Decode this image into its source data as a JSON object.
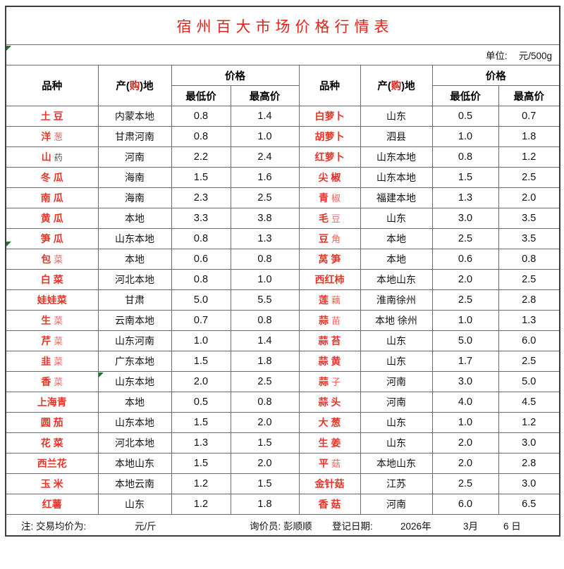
{
  "title": "宿州百大市场价格行情表",
  "unit": {
    "label": "单位:",
    "value": "元/500g"
  },
  "header": {
    "variety": "品种",
    "origin_pre": "产(",
    "origin_buy": "购",
    "origin_post": ")地",
    "price": "价格",
    "min": "最低价",
    "max": "最高价"
  },
  "colors": {
    "title_red": "#e0241b",
    "variety_red": "#e8352a",
    "variety_light_red": "#ee6a5e",
    "error_indicator_green": "#1e7a1e",
    "border_gray": "#6a6a6a"
  },
  "rows": [
    {
      "left": {
        "name": [
          [
            "土 豆",
            "r"
          ]
        ],
        "origin": "内蒙本地",
        "low": "0.8",
        "high": "1.4"
      },
      "right": {
        "name": [
          [
            "白萝卜",
            "r"
          ]
        ],
        "origin": "山东",
        "low": "0.5",
        "high": "0.7"
      }
    },
    {
      "left": {
        "name": [
          [
            "洋 ",
            "r"
          ],
          [
            "葱",
            "l"
          ]
        ],
        "origin": "甘肃河南",
        "low": "0.8",
        "high": "1.0"
      },
      "right": {
        "name": [
          [
            "胡萝卜",
            "r"
          ]
        ],
        "origin": "泗县",
        "low": "1.0",
        "high": "1.8"
      }
    },
    {
      "left": {
        "name": [
          [
            "山 ",
            "r"
          ],
          [
            "药",
            "k"
          ]
        ],
        "origin": "河南",
        "low": "2.2",
        "high": "2.4"
      },
      "right": {
        "name": [
          [
            "红萝卜",
            "r"
          ]
        ],
        "origin": "山东本地",
        "low": "0.8",
        "high": "1.2"
      }
    },
    {
      "left": {
        "name": [
          [
            "冬 瓜",
            "r"
          ]
        ],
        "origin": "海南",
        "low": "1.5",
        "high": "1.6"
      },
      "right": {
        "name": [
          [
            "尖 椒",
            "r"
          ]
        ],
        "origin": "山东本地",
        "low": "1.5",
        "high": "2.5"
      }
    },
    {
      "left": {
        "name": [
          [
            "南 瓜",
            "r"
          ]
        ],
        "origin": "海南",
        "low": "2.3",
        "high": "2.5"
      },
      "right": {
        "name": [
          [
            "青 ",
            "r"
          ],
          [
            "椒",
            "l"
          ]
        ],
        "origin": "福建本地",
        "low": "1.3",
        "high": "2.0"
      }
    },
    {
      "left": {
        "name": [
          [
            "黄 瓜",
            "r"
          ]
        ],
        "origin": "本地",
        "low": "3.3",
        "high": "3.8"
      },
      "right": {
        "name": [
          [
            "毛 ",
            "r"
          ],
          [
            "豆",
            "l"
          ]
        ],
        "origin": "山东",
        "low": "3.0",
        "high": "3.5"
      }
    },
    {
      "left": {
        "name": [
          [
            "笋 瓜",
            "r"
          ]
        ],
        "origin": "山东本地",
        "low": "0.8",
        "high": "1.3"
      },
      "right": {
        "name": [
          [
            "豆 ",
            "r"
          ],
          [
            "角",
            "l"
          ]
        ],
        "origin": "本地",
        "low": "2.5",
        "high": "3.5"
      }
    },
    {
      "left": {
        "name": [
          [
            "包 ",
            "r"
          ],
          [
            "菜",
            "l"
          ]
        ],
        "origin": "本地",
        "low": "0.6",
        "high": "0.8"
      },
      "right": {
        "name": [
          [
            "莴 笋",
            "r"
          ]
        ],
        "origin": "本地",
        "low": "0.6",
        "high": "0.8"
      }
    },
    {
      "left": {
        "name": [
          [
            "白 菜",
            "r"
          ]
        ],
        "origin": "河北本地",
        "low": "0.8",
        "high": "1.0"
      },
      "right": {
        "name": [
          [
            "西红柿",
            "r"
          ]
        ],
        "origin": "本地山东",
        "low": "2.0",
        "high": "2.5"
      }
    },
    {
      "left": {
        "name": [
          [
            "娃娃菜",
            "r"
          ]
        ],
        "origin": "甘肃",
        "low": "5.0",
        "high": "5.5"
      },
      "right": {
        "name": [
          [
            "莲 ",
            "r"
          ],
          [
            "藕",
            "l"
          ]
        ],
        "origin": "淮南徐州",
        "low": "2.5",
        "high": "2.8"
      }
    },
    {
      "left": {
        "name": [
          [
            "生 ",
            "r"
          ],
          [
            "菜",
            "l"
          ]
        ],
        "origin": "云南本地",
        "low": "0.7",
        "high": "0.8"
      },
      "right": {
        "name": [
          [
            "蒜 ",
            "r"
          ],
          [
            "苗",
            "l"
          ]
        ],
        "origin": "本地 徐州",
        "low": "1.0",
        "high": "1.3"
      }
    },
    {
      "left": {
        "name": [
          [
            "芹 ",
            "r"
          ],
          [
            "菜",
            "l"
          ]
        ],
        "origin": "山东河南",
        "low": "1.0",
        "high": "1.4"
      },
      "right": {
        "name": [
          [
            "蒜 苔",
            "r"
          ]
        ],
        "origin": "山东",
        "low": "5.0",
        "high": "6.0"
      }
    },
    {
      "left": {
        "name": [
          [
            "韭 ",
            "r"
          ],
          [
            "菜",
            "l"
          ]
        ],
        "origin": "广东本地",
        "low": "1.5",
        "high": "1.8"
      },
      "right": {
        "name": [
          [
            "蒜 黄",
            "r"
          ]
        ],
        "origin": "山东",
        "low": "1.7",
        "high": "2.5"
      }
    },
    {
      "left": {
        "name": [
          [
            "香 ",
            "r"
          ],
          [
            "菜",
            "l"
          ]
        ],
        "origin": "山东本地",
        "low": "2.0",
        "high": "2.5"
      },
      "right": {
        "name": [
          [
            "蒜 ",
            "r"
          ],
          [
            "子",
            "l"
          ]
        ],
        "origin": "河南",
        "low": "3.0",
        "high": "5.0"
      }
    },
    {
      "left": {
        "name": [
          [
            "上海青",
            "r"
          ]
        ],
        "origin": "本地",
        "low": "0.5",
        "high": "0.8"
      },
      "right": {
        "name": [
          [
            "蒜 头",
            "r"
          ]
        ],
        "origin": "河南",
        "low": "4.0",
        "high": "4.5"
      }
    },
    {
      "left": {
        "name": [
          [
            "圆 茄",
            "r"
          ]
        ],
        "origin": "山东本地",
        "low": "1.5",
        "high": "2.0"
      },
      "right": {
        "name": [
          [
            "大 葱",
            "r"
          ]
        ],
        "origin": "山东",
        "low": "1.0",
        "high": "1.2"
      }
    },
    {
      "left": {
        "name": [
          [
            "花 菜",
            "r"
          ]
        ],
        "origin": "河北本地",
        "low": "1.3",
        "high": "1.5"
      },
      "right": {
        "name": [
          [
            "生 姜",
            "r"
          ]
        ],
        "origin": "山东",
        "low": "2.0",
        "high": "3.0"
      }
    },
    {
      "left": {
        "name": [
          [
            "西兰花",
            "r"
          ]
        ],
        "origin": "本地山东",
        "low": "1.5",
        "high": "2.0"
      },
      "right": {
        "name": [
          [
            "平 ",
            "r"
          ],
          [
            "菇",
            "l"
          ]
        ],
        "origin": "本地山东",
        "low": "2.0",
        "high": "2.8"
      }
    },
    {
      "left": {
        "name": [
          [
            "玉 米",
            "r"
          ]
        ],
        "origin": "本地云南",
        "low": "1.2",
        "high": "1.5"
      },
      "right": {
        "name": [
          [
            "金针菇",
            "r"
          ]
        ],
        "origin": "江苏",
        "low": "2.5",
        "high": "3.0"
      }
    },
    {
      "left": {
        "name": [
          [
            "红薯",
            "r"
          ]
        ],
        "origin": "山东",
        "low": "1.2",
        "high": "1.8"
      },
      "right": {
        "name": [
          [
            "香 菇",
            "r"
          ],
          [
            " ",
            ""
          ],
          [
            "",
            "l"
          ]
        ],
        "origin": "河南",
        "low": "6.0",
        "high": "6.5"
      }
    }
  ],
  "footer": {
    "note_label": "注: 交易均价为:",
    "note_unit": "元/斤",
    "inquirer": "询价员: 彭顺顺",
    "date_label": "登记日期:",
    "year": "2026年",
    "month": "3月",
    "day": "6 日"
  }
}
